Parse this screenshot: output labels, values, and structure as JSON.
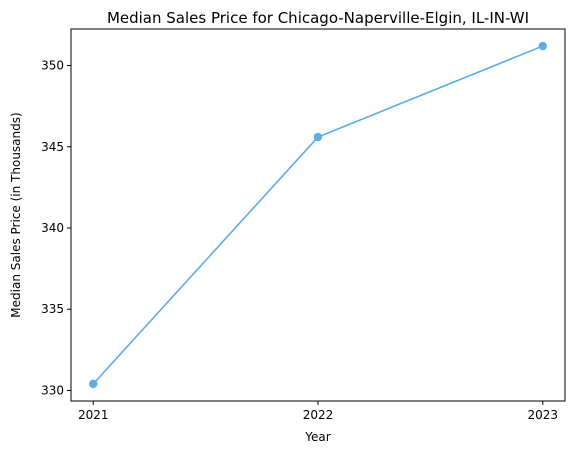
{
  "chart_data": {
    "type": "line",
    "title": "Median Sales Price for Chicago-Naperville-Elgin, IL-IN-WI",
    "xlabel": "Year",
    "ylabel": "Median Sales Price (in Thousands)",
    "categories": [
      "2021",
      "2022",
      "2023"
    ],
    "series": [
      {
        "values": [
          330.4,
          345.6,
          351.2
        ]
      }
    ],
    "ylim": [
      329.35,
      352.25
    ],
    "yticks": [
      330,
      335,
      340,
      345,
      350
    ],
    "grid": false,
    "line_color": "#5dade2",
    "marker": "circle"
  }
}
